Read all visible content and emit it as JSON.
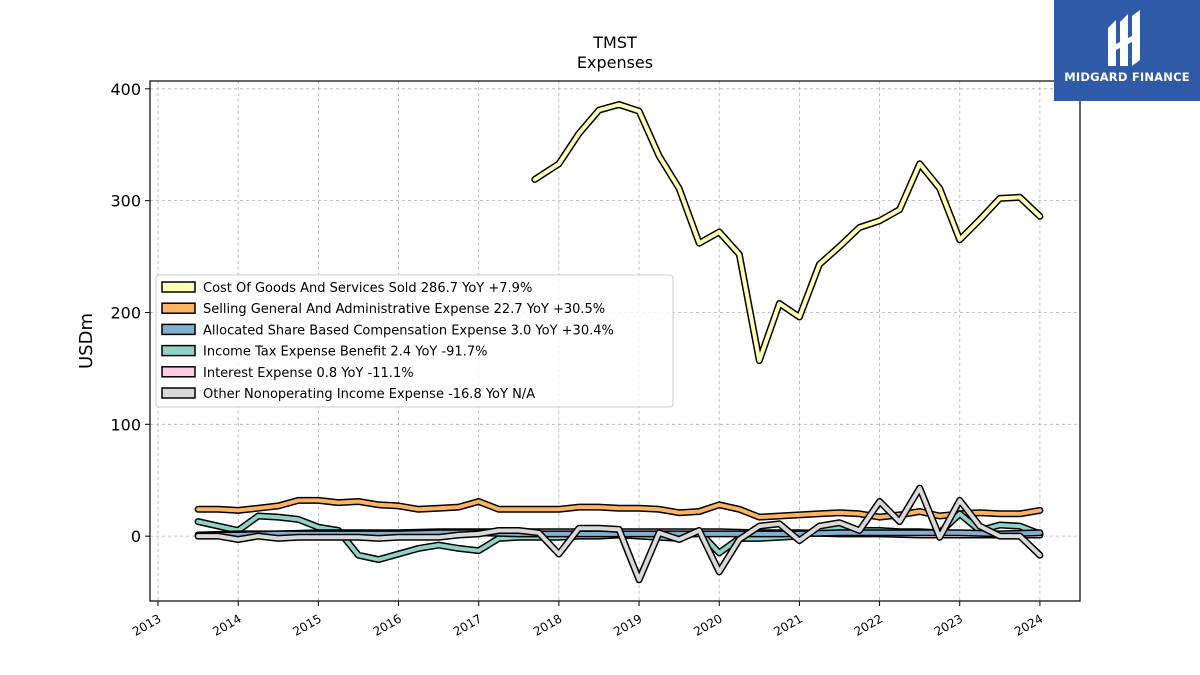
{
  "brand": {
    "logo_text": "MIDGARD FINANCE",
    "logo_color": "#2f5aa8"
  },
  "chart_data": {
    "type": "line",
    "title": "TMST",
    "subtitle": "Expenses",
    "xlabel": "",
    "ylabel": "USDm",
    "xlim": [
      2012.9,
      2024.5
    ],
    "ylim": [
      -58,
      407
    ],
    "grid": true,
    "legend_position": "center-left",
    "x_ticks": [
      "2013",
      "2014",
      "2015",
      "2016",
      "2017",
      "2018",
      "2019",
      "2020",
      "2021",
      "2022",
      "2023",
      "2024"
    ],
    "y_ticks": [
      "0",
      "100",
      "200",
      "300",
      "400"
    ],
    "series": [
      {
        "name": "Cost Of Goods And Services Sold",
        "legend_label": "Cost Of Goods And Services Sold  286.7 YoY +7.9%",
        "color": "#ffffb3",
        "x": [
          2017.7,
          2018.0,
          2018.25,
          2018.5,
          2018.75,
          2019.0,
          2019.25,
          2019.5,
          2019.75,
          2020.0,
          2020.25,
          2020.5,
          2020.75,
          2021.0,
          2021.25,
          2021.5,
          2021.75,
          2022.0,
          2022.25,
          2022.5,
          2022.75,
          2023.0,
          2023.25,
          2023.5,
          2023.75,
          2024.0
        ],
        "values": [
          319,
          333,
          360,
          381,
          386,
          380,
          340,
          311,
          262,
          272,
          252,
          157,
          208,
          196,
          243,
          259,
          276,
          282,
          292,
          333,
          311,
          265,
          283,
          302,
          303,
          286
        ]
      },
      {
        "name": "Selling General And Administrative Expense",
        "legend_label": "Selling General And Administrative Expense  22.7 YoY +30.5%",
        "color": "#fdb462",
        "x": [
          2013.5,
          2013.75,
          2014.0,
          2014.25,
          2014.5,
          2014.75,
          2015.0,
          2015.25,
          2015.5,
          2015.75,
          2016.0,
          2016.25,
          2016.5,
          2016.75,
          2017.0,
          2017.25,
          2017.5,
          2017.75,
          2018.0,
          2018.25,
          2018.5,
          2018.75,
          2019.0,
          2019.25,
          2019.5,
          2019.75,
          2020.0,
          2020.25,
          2020.5,
          2020.75,
          2021.0,
          2021.25,
          2021.5,
          2021.75,
          2022.0,
          2022.25,
          2022.5,
          2022.75,
          2023.0,
          2023.25,
          2023.5,
          2023.75,
          2024.0
        ],
        "values": [
          24,
          24,
          23,
          25,
          27,
          32,
          32,
          30,
          31,
          28,
          27,
          24,
          25,
          26,
          31,
          24,
          24,
          24,
          24,
          26,
          26,
          25,
          25,
          24,
          21,
          22,
          28,
          24,
          17,
          18,
          19,
          20,
          21,
          20,
          17,
          19,
          22,
          18,
          20,
          21,
          20,
          20,
          23
        ]
      },
      {
        "name": "Allocated Share Based Compensation Expense",
        "legend_label": "Allocated Share Based Compensation Expense  3.0 YoY +30.4%",
        "color": "#80b1d3",
        "x": [
          2013.5,
          2014.0,
          2014.5,
          2015.0,
          2015.5,
          2016.0,
          2016.5,
          2017.0,
          2017.5,
          2018.0,
          2018.5,
          2019.0,
          2019.5,
          2020.0,
          2020.5,
          2021.0,
          2021.5,
          2022.0,
          2022.5,
          2023.0,
          2023.5,
          2024.0
        ],
        "values": [
          1,
          1,
          2,
          2,
          2,
          2,
          3,
          3,
          2,
          2,
          2,
          2,
          2,
          2,
          2,
          2,
          3,
          3,
          3,
          3,
          2,
          3
        ]
      },
      {
        "name": "Income Tax Expense Benefit",
        "legend_label": "Income Tax Expense Benefit  2.4 YoY -91.7%",
        "color": "#8dd3c7",
        "x": [
          2013.5,
          2013.75,
          2014.0,
          2014.25,
          2014.5,
          2014.75,
          2015.0,
          2015.25,
          2015.5,
          2015.75,
          2016.0,
          2016.25,
          2016.5,
          2016.75,
          2017.0,
          2017.25,
          2017.5,
          2017.75,
          2018.0,
          2018.25,
          2018.5,
          2018.75,
          2019.0,
          2019.25,
          2019.5,
          2019.75,
          2020.0,
          2020.25,
          2020.5,
          2020.75,
          2021.0,
          2021.25,
          2021.5,
          2021.75,
          2022.0,
          2022.25,
          2022.5,
          2022.75,
          2023.0,
          2023.25,
          2023.5,
          2023.75,
          2024.0
        ],
        "values": [
          13,
          9,
          5,
          18,
          17,
          15,
          8,
          5,
          -17,
          -21,
          -16,
          -11,
          -8,
          -11,
          -13,
          -2,
          -1,
          -1,
          -1,
          0,
          0,
          1,
          0,
          -1,
          -2,
          4,
          -15,
          -2,
          -2,
          -1,
          0,
          5,
          8,
          5,
          5,
          4,
          4,
          3,
          20,
          5,
          10,
          9,
          2
        ]
      },
      {
        "name": "Interest Expense",
        "legend_label": "Interest Expense  0.8 YoY -11.1%",
        "color": "#fccde5",
        "x": [
          2013.5,
          2014.0,
          2014.5,
          2015.0,
          2015.5,
          2016.0,
          2016.5,
          2017.0,
          2017.5,
          2018.0,
          2018.5,
          2019.0,
          2019.5,
          2020.0,
          2020.5,
          2021.0,
          2021.5,
          2022.0,
          2022.5,
          2023.0,
          2023.5,
          2024.0
        ],
        "values": [
          1,
          2,
          2,
          3,
          3,
          3,
          4,
          4,
          4,
          4,
          4,
          4,
          4,
          4,
          3,
          3,
          2,
          2,
          1,
          1,
          1,
          1
        ]
      },
      {
        "name": "Other Nonoperating Income Expense",
        "legend_label": "Other Nonoperating Income Expense  -16.8 YoY N/A",
        "color": "#d9d9d9",
        "x": [
          2013.5,
          2013.75,
          2014.0,
          2014.25,
          2014.5,
          2014.75,
          2015.0,
          2015.25,
          2015.5,
          2015.75,
          2016.0,
          2016.25,
          2016.5,
          2016.75,
          2017.0,
          2017.25,
          2017.5,
          2017.75,
          2018.0,
          2018.25,
          2018.5,
          2018.75,
          2019.0,
          2019.25,
          2019.5,
          2019.75,
          2020.0,
          2020.25,
          2020.5,
          2020.75,
          2021.0,
          2021.25,
          2021.5,
          2021.75,
          2022.0,
          2022.25,
          2022.5,
          2022.75,
          2023.0,
          2023.25,
          2023.5,
          2023.75,
          2024.0
        ],
        "values": [
          0,
          0,
          -3,
          0,
          -2,
          -1,
          -1,
          -1,
          -1,
          -2,
          -1,
          -1,
          -1,
          1,
          2,
          5,
          5,
          3,
          -16,
          7,
          7,
          6,
          -39,
          3,
          -3,
          5,
          -32,
          -3,
          9,
          11,
          -4,
          9,
          12,
          5,
          31,
          13,
          43,
          -1,
          32,
          9,
          0,
          0,
          -17
        ]
      }
    ]
  }
}
